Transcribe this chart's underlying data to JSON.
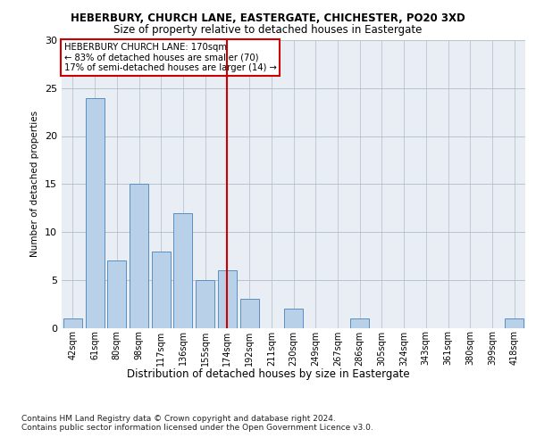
{
  "title1": "HEBERBURY, CHURCH LANE, EASTERGATE, CHICHESTER, PO20 3XD",
  "title2": "Size of property relative to detached houses in Eastergate",
  "xlabel": "Distribution of detached houses by size in Eastergate",
  "ylabel": "Number of detached properties",
  "categories": [
    "42sqm",
    "61sqm",
    "80sqm",
    "98sqm",
    "117sqm",
    "136sqm",
    "155sqm",
    "174sqm",
    "192sqm",
    "211sqm",
    "230sqm",
    "249sqm",
    "267sqm",
    "286sqm",
    "305sqm",
    "324sqm",
    "343sqm",
    "361sqm",
    "380sqm",
    "399sqm",
    "418sqm"
  ],
  "values": [
    1,
    24,
    7,
    15,
    8,
    12,
    5,
    6,
    3,
    0,
    2,
    0,
    0,
    1,
    0,
    0,
    0,
    0,
    0,
    0,
    1
  ],
  "bar_color": "#b8d0e8",
  "bar_edge_color": "#5a8fc0",
  "vline_index": 7,
  "vline_color": "#cc0000",
  "annotation_text": "HEBERBURY CHURCH LANE: 170sqm\n← 83% of detached houses are smaller (70)\n17% of semi-detached houses are larger (14) →",
  "annotation_box_color": "#ffffff",
  "annotation_box_edge": "#cc0000",
  "ylim": [
    0,
    30
  ],
  "yticks": [
    0,
    5,
    10,
    15,
    20,
    25,
    30
  ],
  "footnote": "Contains HM Land Registry data © Crown copyright and database right 2024.\nContains public sector information licensed under the Open Government Licence v3.0.",
  "plot_bg_color": "#e8eef4"
}
